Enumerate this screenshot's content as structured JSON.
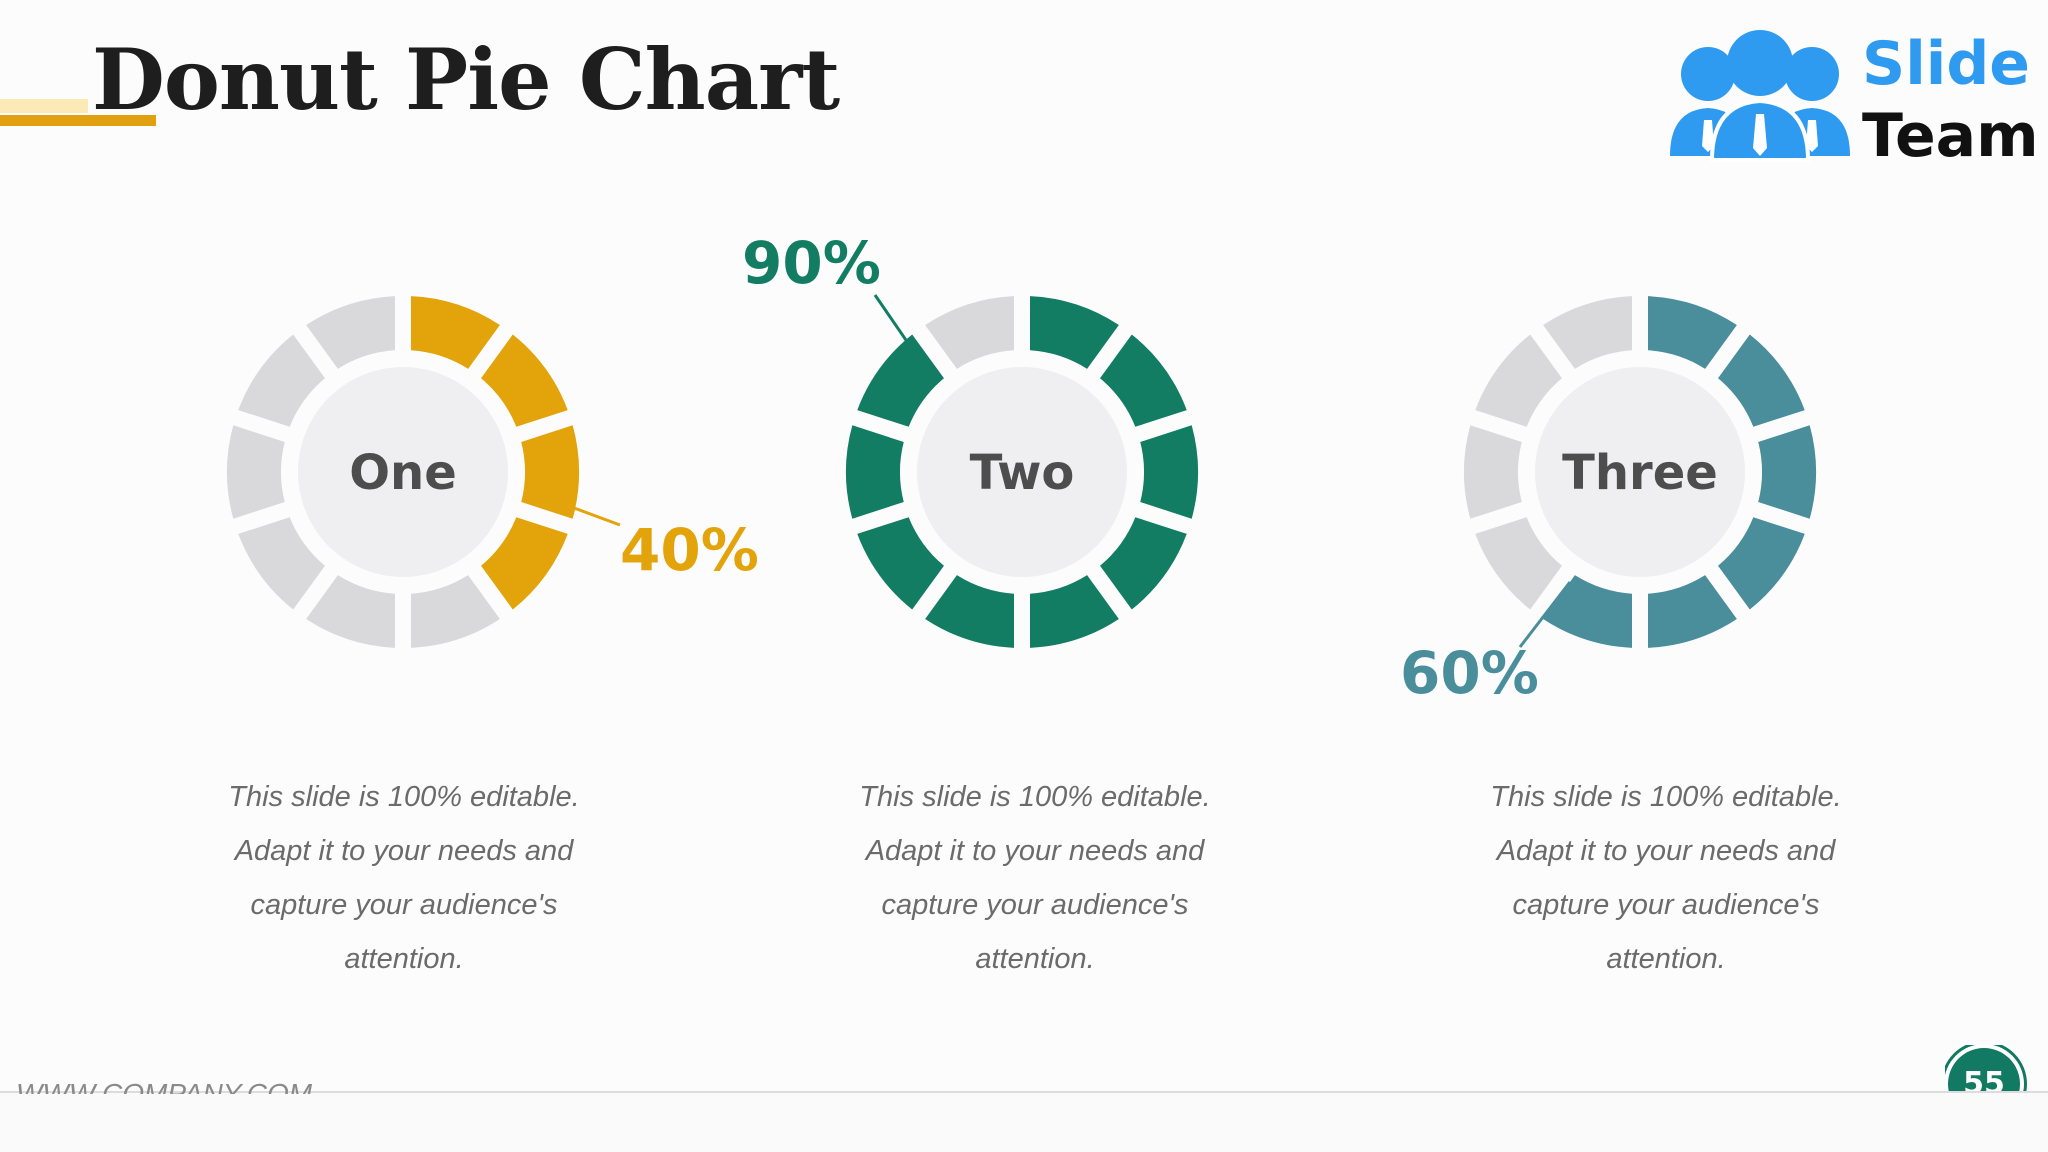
{
  "title": "Donut Pie Chart",
  "logo": {
    "line1": "Slide",
    "line2": "Team",
    "icon": "people-icon"
  },
  "chart_data": {
    "type": "pie",
    "total_segments": 10,
    "charts": [
      {
        "label": "One",
        "value": 40,
        "value_text": "40%",
        "color": "#e3a30a"
      },
      {
        "label": "Two",
        "value": 90,
        "value_text": "90%",
        "color": "#127d62"
      },
      {
        "label": "Three",
        "value": 60,
        "value_text": "60%",
        "color": "#4a8e9b"
      }
    ],
    "empty_color": "#d9d8db",
    "center_color": "#efeff1"
  },
  "descriptions": [
    [
      "This slide is 100% editable.",
      "Adapt it to your needs and",
      "capture your audience's",
      "attention."
    ],
    [
      "This slide is 100% editable.",
      "Adapt it to your needs and",
      "capture your audience's",
      "attention."
    ],
    [
      "This slide is 100% editable.",
      "Adapt it to your needs and",
      "capture your audience's",
      "attention."
    ]
  ],
  "footer": {
    "url": "WWW.COMPANY.COM",
    "page": "55"
  }
}
